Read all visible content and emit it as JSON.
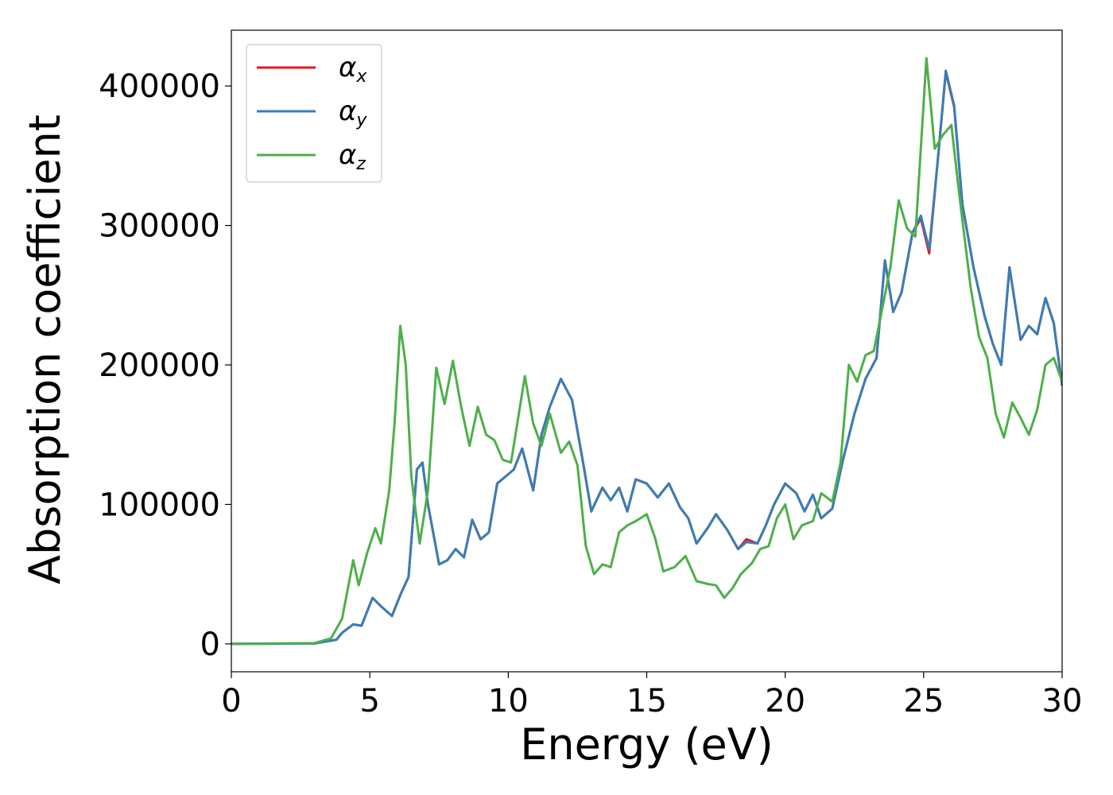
{
  "chart_data": {
    "type": "line",
    "title": "",
    "xlabel": "Energy (eV)",
    "ylabel": "Absorption coefficient",
    "xlim": [
      0,
      30
    ],
    "ylim": [
      -20000,
      440000
    ],
    "xticks": [
      0,
      5,
      10,
      15,
      20,
      25,
      30
    ],
    "yticks": [
      0,
      100000,
      200000,
      300000,
      400000
    ],
    "xtick_labels": [
      "0",
      "5",
      "10",
      "15",
      "20",
      "25",
      "30"
    ],
    "ytick_labels": [
      "0",
      "100000",
      "200000",
      "300000",
      "400000"
    ],
    "grid": false,
    "legend": {
      "position": "top-left",
      "entries": [
        {
          "symbol": "α",
          "subscript": "x",
          "color": "#e41a1c"
        },
        {
          "symbol": "α",
          "subscript": "y",
          "color": "#377eb8"
        },
        {
          "symbol": "α",
          "subscript": "z",
          "color": "#4daf4a"
        }
      ]
    },
    "series": [
      {
        "color": "#e41a1c",
        "points": [
          [
            0,
            0
          ],
          [
            3.0,
            300
          ],
          [
            3.8,
            3000
          ],
          [
            4.0,
            8000
          ],
          [
            4.4,
            14000
          ],
          [
            4.7,
            13000
          ],
          [
            5.1,
            33000
          ],
          [
            5.4,
            27000
          ],
          [
            5.8,
            20000
          ],
          [
            6.1,
            35000
          ],
          [
            6.4,
            48000
          ],
          [
            6.7,
            125000
          ],
          [
            6.9,
            130000
          ],
          [
            7.1,
            100000
          ],
          [
            7.5,
            57000
          ],
          [
            7.8,
            60000
          ],
          [
            8.1,
            68000
          ],
          [
            8.4,
            62000
          ],
          [
            8.7,
            89000
          ],
          [
            9.0,
            75000
          ],
          [
            9.3,
            80000
          ],
          [
            9.6,
            115000
          ],
          [
            9.9,
            120000
          ],
          [
            10.2,
            125000
          ],
          [
            10.5,
            140000
          ],
          [
            10.9,
            110000
          ],
          [
            11.2,
            150000
          ],
          [
            11.5,
            170000
          ],
          [
            11.9,
            190000
          ],
          [
            12.3,
            175000
          ],
          [
            12.7,
            130000
          ],
          [
            13.0,
            95000
          ],
          [
            13.4,
            112000
          ],
          [
            13.7,
            103000
          ],
          [
            14.0,
            112000
          ],
          [
            14.3,
            95000
          ],
          [
            14.6,
            118000
          ],
          [
            15.0,
            115000
          ],
          [
            15.4,
            105000
          ],
          [
            15.8,
            115000
          ],
          [
            16.2,
            98000
          ],
          [
            16.5,
            90000
          ],
          [
            16.8,
            72000
          ],
          [
            17.2,
            83000
          ],
          [
            17.5,
            93000
          ],
          [
            17.9,
            82000
          ],
          [
            18.3,
            68000
          ],
          [
            18.6,
            75000
          ],
          [
            19.0,
            72000
          ],
          [
            19.3,
            85000
          ],
          [
            19.6,
            100000
          ],
          [
            20.0,
            115000
          ],
          [
            20.4,
            108000
          ],
          [
            20.7,
            95000
          ],
          [
            21.0,
            107000
          ],
          [
            21.3,
            90000
          ],
          [
            21.7,
            97000
          ],
          [
            22.1,
            133000
          ],
          [
            22.5,
            165000
          ],
          [
            22.9,
            190000
          ],
          [
            23.3,
            205000
          ],
          [
            23.6,
            275000
          ],
          [
            23.9,
            238000
          ],
          [
            24.2,
            252000
          ],
          [
            24.6,
            295000
          ],
          [
            24.9,
            305000
          ],
          [
            25.2,
            280000
          ],
          [
            25.5,
            345000
          ],
          [
            25.8,
            410000
          ],
          [
            26.1,
            385000
          ],
          [
            26.4,
            315000
          ],
          [
            26.8,
            270000
          ],
          [
            27.2,
            235000
          ],
          [
            27.5,
            215000
          ],
          [
            27.8,
            200000
          ],
          [
            28.1,
            270000
          ],
          [
            28.5,
            218000
          ],
          [
            28.8,
            228000
          ],
          [
            29.1,
            222000
          ],
          [
            29.4,
            248000
          ],
          [
            29.7,
            230000
          ],
          [
            30.0,
            185000
          ]
        ]
      },
      {
        "color": "#377eb8",
        "points": [
          [
            0,
            0
          ],
          [
            3.0,
            300
          ],
          [
            3.8,
            3000
          ],
          [
            4.0,
            8000
          ],
          [
            4.4,
            14000
          ],
          [
            4.7,
            13000
          ],
          [
            5.1,
            33000
          ],
          [
            5.4,
            27000
          ],
          [
            5.8,
            20000
          ],
          [
            6.1,
            35000
          ],
          [
            6.4,
            48000
          ],
          [
            6.7,
            125000
          ],
          [
            6.9,
            130000
          ],
          [
            7.1,
            100000
          ],
          [
            7.5,
            57000
          ],
          [
            7.8,
            60000
          ],
          [
            8.1,
            68000
          ],
          [
            8.4,
            62000
          ],
          [
            8.7,
            89000
          ],
          [
            9.0,
            75000
          ],
          [
            9.3,
            80000
          ],
          [
            9.6,
            115000
          ],
          [
            9.9,
            120000
          ],
          [
            10.2,
            125000
          ],
          [
            10.5,
            140000
          ],
          [
            10.9,
            110000
          ],
          [
            11.2,
            150000
          ],
          [
            11.5,
            170000
          ],
          [
            11.9,
            190000
          ],
          [
            12.3,
            175000
          ],
          [
            12.7,
            130000
          ],
          [
            13.0,
            95000
          ],
          [
            13.4,
            112000
          ],
          [
            13.7,
            103000
          ],
          [
            14.0,
            112000
          ],
          [
            14.3,
            95000
          ],
          [
            14.6,
            118000
          ],
          [
            15.0,
            115000
          ],
          [
            15.4,
            105000
          ],
          [
            15.8,
            115000
          ],
          [
            16.2,
            98000
          ],
          [
            16.5,
            90000
          ],
          [
            16.8,
            72000
          ],
          [
            17.2,
            83000
          ],
          [
            17.5,
            93000
          ],
          [
            17.9,
            82000
          ],
          [
            18.3,
            68000
          ],
          [
            18.6,
            73000
          ],
          [
            19.0,
            72000
          ],
          [
            19.3,
            85000
          ],
          [
            19.6,
            100000
          ],
          [
            20.0,
            115000
          ],
          [
            20.4,
            108000
          ],
          [
            20.7,
            95000
          ],
          [
            21.0,
            107000
          ],
          [
            21.3,
            90000
          ],
          [
            21.7,
            97000
          ],
          [
            22.1,
            133000
          ],
          [
            22.5,
            165000
          ],
          [
            22.9,
            190000
          ],
          [
            23.3,
            205000
          ],
          [
            23.6,
            275000
          ],
          [
            23.9,
            238000
          ],
          [
            24.2,
            252000
          ],
          [
            24.6,
            295000
          ],
          [
            24.9,
            307000
          ],
          [
            25.2,
            283000
          ],
          [
            25.5,
            345000
          ],
          [
            25.8,
            411000
          ],
          [
            26.1,
            386000
          ],
          [
            26.4,
            315000
          ],
          [
            26.8,
            270000
          ],
          [
            27.2,
            235000
          ],
          [
            27.5,
            215000
          ],
          [
            27.8,
            200000
          ],
          [
            28.1,
            270000
          ],
          [
            28.5,
            218000
          ],
          [
            28.8,
            228000
          ],
          [
            29.1,
            222000
          ],
          [
            29.4,
            248000
          ],
          [
            29.7,
            230000
          ],
          [
            30.0,
            185000
          ]
        ]
      },
      {
        "color": "#4daf4a",
        "points": [
          [
            0,
            0
          ],
          [
            3.0,
            500
          ],
          [
            3.6,
            4000
          ],
          [
            4.0,
            18000
          ],
          [
            4.4,
            60000
          ],
          [
            4.6,
            42000
          ],
          [
            4.9,
            65000
          ],
          [
            5.2,
            83000
          ],
          [
            5.4,
            72000
          ],
          [
            5.7,
            110000
          ],
          [
            5.9,
            160000
          ],
          [
            6.1,
            228000
          ],
          [
            6.3,
            200000
          ],
          [
            6.5,
            120000
          ],
          [
            6.8,
            72000
          ],
          [
            7.1,
            110000
          ],
          [
            7.4,
            198000
          ],
          [
            7.7,
            172000
          ],
          [
            8.0,
            203000
          ],
          [
            8.3,
            170000
          ],
          [
            8.6,
            142000
          ],
          [
            8.9,
            170000
          ],
          [
            9.2,
            150000
          ],
          [
            9.5,
            146000
          ],
          [
            9.8,
            132000
          ],
          [
            10.1,
            130000
          ],
          [
            10.6,
            192000
          ],
          [
            10.9,
            158000
          ],
          [
            11.2,
            142000
          ],
          [
            11.5,
            165000
          ],
          [
            11.9,
            137000
          ],
          [
            12.2,
            145000
          ],
          [
            12.5,
            128000
          ],
          [
            12.8,
            70000
          ],
          [
            13.1,
            50000
          ],
          [
            13.4,
            57000
          ],
          [
            13.7,
            55000
          ],
          [
            14.0,
            80000
          ],
          [
            14.3,
            85000
          ],
          [
            14.6,
            88000
          ],
          [
            15.0,
            93000
          ],
          [
            15.3,
            76000
          ],
          [
            15.6,
            52000
          ],
          [
            16.0,
            55000
          ],
          [
            16.4,
            63000
          ],
          [
            16.8,
            45000
          ],
          [
            17.2,
            43000
          ],
          [
            17.5,
            42000
          ],
          [
            17.8,
            33000
          ],
          [
            18.1,
            40000
          ],
          [
            18.4,
            50000
          ],
          [
            18.8,
            58000
          ],
          [
            19.1,
            68000
          ],
          [
            19.4,
            70000
          ],
          [
            19.7,
            90000
          ],
          [
            20.0,
            100000
          ],
          [
            20.3,
            75000
          ],
          [
            20.6,
            85000
          ],
          [
            21.0,
            88000
          ],
          [
            21.3,
            108000
          ],
          [
            21.7,
            102000
          ],
          [
            22.0,
            130000
          ],
          [
            22.3,
            200000
          ],
          [
            22.6,
            188000
          ],
          [
            22.9,
            207000
          ],
          [
            23.2,
            210000
          ],
          [
            23.5,
            240000
          ],
          [
            23.8,
            270000
          ],
          [
            24.1,
            318000
          ],
          [
            24.4,
            298000
          ],
          [
            24.7,
            292000
          ],
          [
            25.1,
            420000
          ],
          [
            25.4,
            355000
          ],
          [
            25.7,
            365000
          ],
          [
            26.0,
            372000
          ],
          [
            26.3,
            320000
          ],
          [
            26.7,
            255000
          ],
          [
            27.0,
            220000
          ],
          [
            27.3,
            205000
          ],
          [
            27.6,
            165000
          ],
          [
            27.9,
            148000
          ],
          [
            28.2,
            173000
          ],
          [
            28.5,
            162000
          ],
          [
            28.8,
            150000
          ],
          [
            29.1,
            168000
          ],
          [
            29.4,
            200000
          ],
          [
            29.7,
            205000
          ],
          [
            30.0,
            188000
          ]
        ]
      }
    ]
  }
}
